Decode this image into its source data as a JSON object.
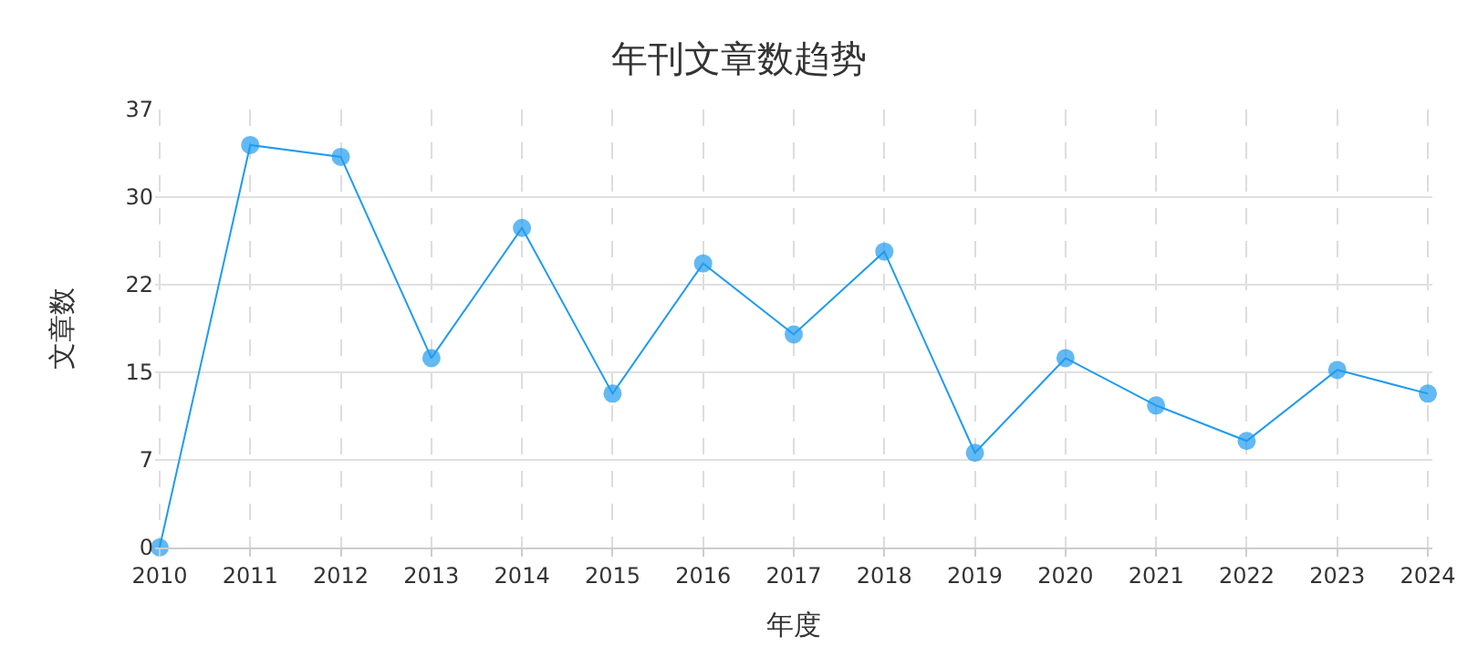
{
  "chart_data": {
    "type": "line",
    "title": "年刊文章数趋势",
    "xlabel": "年度",
    "ylabel": "文章数",
    "categories": [
      "2010",
      "2011",
      "2012",
      "2013",
      "2014",
      "2015",
      "2016",
      "2017",
      "2018",
      "2019",
      "2020",
      "2021",
      "2022",
      "2023",
      "2024"
    ],
    "series": [
      {
        "color": "#1f9bef",
        "values": [
          0,
          34,
          33,
          16,
          27,
          13,
          24,
          18,
          25,
          8,
          16,
          12,
          9,
          15,
          13
        ]
      }
    ],
    "ylim": [
      0,
      37
    ],
    "yticks": [
      0,
      {
        "value": 7.4,
        "label": "7"
      },
      {
        "value": 14.8,
        "label": "15"
      },
      {
        "value": 22.2,
        "label": "22"
      },
      {
        "value": 29.6,
        "label": "30"
      },
      37
    ],
    "grid": true,
    "marker": "circle",
    "line_style": "solid"
  }
}
